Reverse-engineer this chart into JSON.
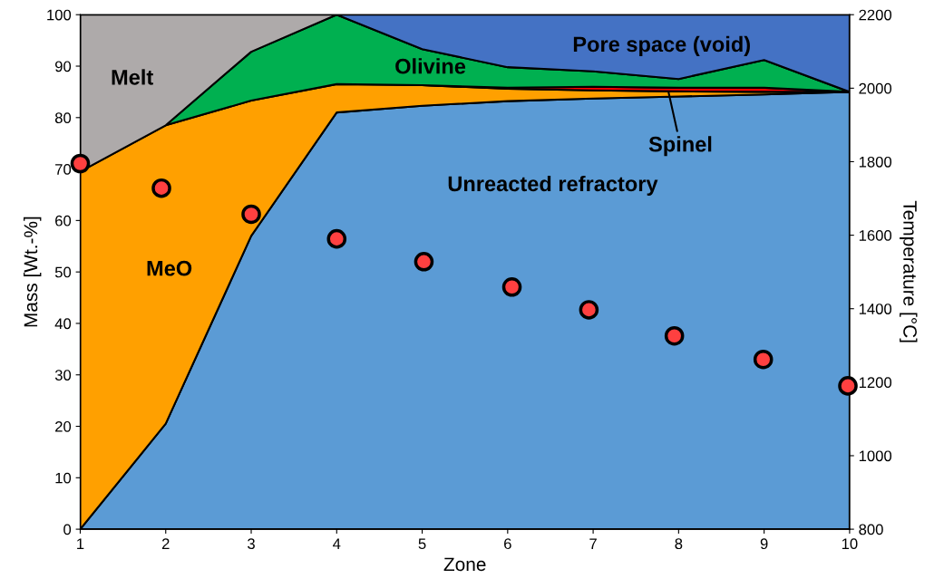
{
  "chart_data": {
    "type": "area",
    "stacked": true,
    "xlabel": "Zone",
    "ylabel": "Mass [Wt.-%]",
    "y2label": "Temperature [°C]",
    "x": [
      1,
      2,
      3,
      4,
      5,
      6,
      7,
      8,
      9,
      10
    ],
    "xlim": [
      1,
      10
    ],
    "xticks": [
      1,
      2,
      3,
      4,
      5,
      6,
      7,
      8,
      9,
      10
    ],
    "ylim": [
      0,
      100
    ],
    "yticks": [
      0,
      10,
      20,
      30,
      40,
      50,
      60,
      70,
      80,
      90,
      100
    ],
    "y2lim": [
      800,
      2200
    ],
    "y2ticks": [
      800,
      1000,
      1200,
      1400,
      1600,
      1800,
      2000,
      2200
    ],
    "grid": false,
    "series": [
      {
        "name": "Unreacted refractory",
        "color": "#5b9bd5",
        "values": [
          0,
          20.5,
          57,
          81,
          82.3,
          83.2,
          83.7,
          84.1,
          84.5,
          85
        ]
      },
      {
        "name": "MeO",
        "color": "#ffa000",
        "values": [
          69.5,
          58,
          26.3,
          5.5,
          4,
          2.4,
          1.6,
          1.0,
          0.5,
          0
        ]
      },
      {
        "name": "Spinel",
        "color": "#ff0000",
        "values": [
          null,
          null,
          null,
          null,
          0,
          0.2,
          0.7,
          0.7,
          0.8,
          0
        ]
      },
      {
        "name": "Olivine",
        "color": "#00b050",
        "values": [
          null,
          0,
          9.5,
          13.5,
          7,
          4,
          3,
          1.7,
          5.4,
          0
        ]
      },
      {
        "name": "Melt",
        "color": "#aeaaaa",
        "values": [
          30.5,
          21.5,
          7.2,
          0,
          null,
          null,
          null,
          null,
          null,
          null
        ]
      },
      {
        "name": "Pore space (void)",
        "color": "#4472c4",
        "values": [
          null,
          null,
          null,
          0,
          6.7,
          10.2,
          11,
          12.5,
          8.8,
          15
        ]
      },
      {
        "type": "scatter",
        "axis": "y2",
        "marker": "circle",
        "color": "#ff4040",
        "x": [
          1,
          1.95,
          3.0,
          4.0,
          5.02,
          6.05,
          6.95,
          7.95,
          8.99,
          9.98
        ],
        "values": [
          1795,
          1728,
          1657,
          1590,
          1528,
          1459,
          1397,
          1326,
          1262,
          1190
        ]
      }
    ]
  }
}
